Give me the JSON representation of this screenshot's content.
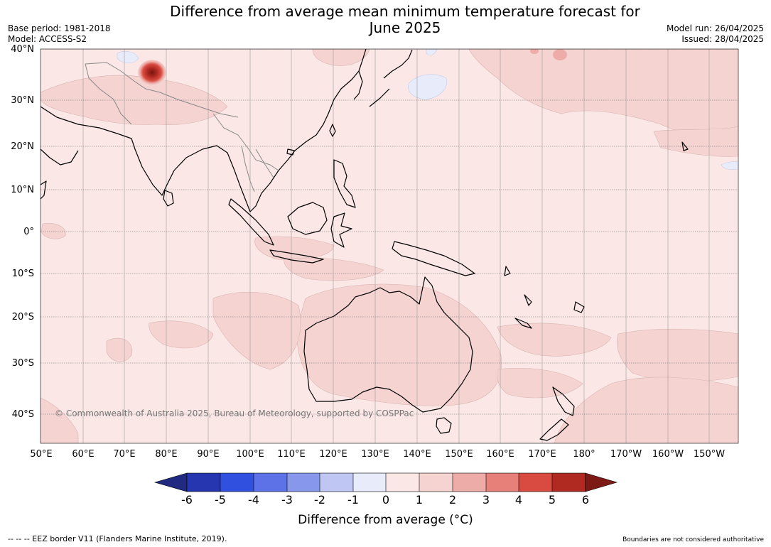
{
  "header": {
    "title_line1": "Difference from average mean minimum temperature forecast for",
    "title_line2": "June 2025",
    "base_period": "Base period: 1981-2018",
    "model": "Model: ACCESS-S2",
    "model_run": "Model run: 26/04/2025",
    "issued": "Issued: 28/04/2025"
  },
  "map": {
    "lat_labels": [
      "40°N",
      "30°N",
      "20°N",
      "10°N",
      "0°",
      "10°S",
      "20°S",
      "30°S",
      "40°S"
    ],
    "lon_labels": [
      "50°E",
      "60°E",
      "70°E",
      "80°E",
      "90°E",
      "100°E",
      "110°E",
      "120°E",
      "130°E",
      "140°E",
      "150°E",
      "160°E",
      "170°E",
      "180°",
      "170°W",
      "160°W",
      "150°W"
    ],
    "copyright": "© Commonwealth of Australia 2025, Bureau of Meteorology, supported by COSPPac",
    "colors": {
      "background_anomaly_0_1": "#fbe8e6",
      "anomaly_1_2": "#f4d3d1",
      "anomaly_neg1_0": "#e8ecfa",
      "land_outline": "#000000",
      "border_outline": "#888888",
      "hotspot": "#b02020"
    }
  },
  "colorbar": {
    "ticks": [
      "-6",
      "-5",
      "-4",
      "-3",
      "-2",
      "-1",
      "0",
      "1",
      "2",
      "3",
      "4",
      "5",
      "6"
    ],
    "colors": [
      "#1f2a80",
      "#2636b0",
      "#3050e0",
      "#5c72e6",
      "#8797ec",
      "#bfc6f4",
      "#e8ebfa",
      "#fbe8e6",
      "#f4d3d1",
      "#eeaca8",
      "#e8807a",
      "#d94a40",
      "#b02a22",
      "#7d1a16"
    ],
    "label": "Difference from average (°C)"
  },
  "footer": {
    "left": "--  --  -- EEZ border V11 (Flanders Marine Institute, 2019).",
    "right": "Boundaries are not considered authoritative"
  }
}
